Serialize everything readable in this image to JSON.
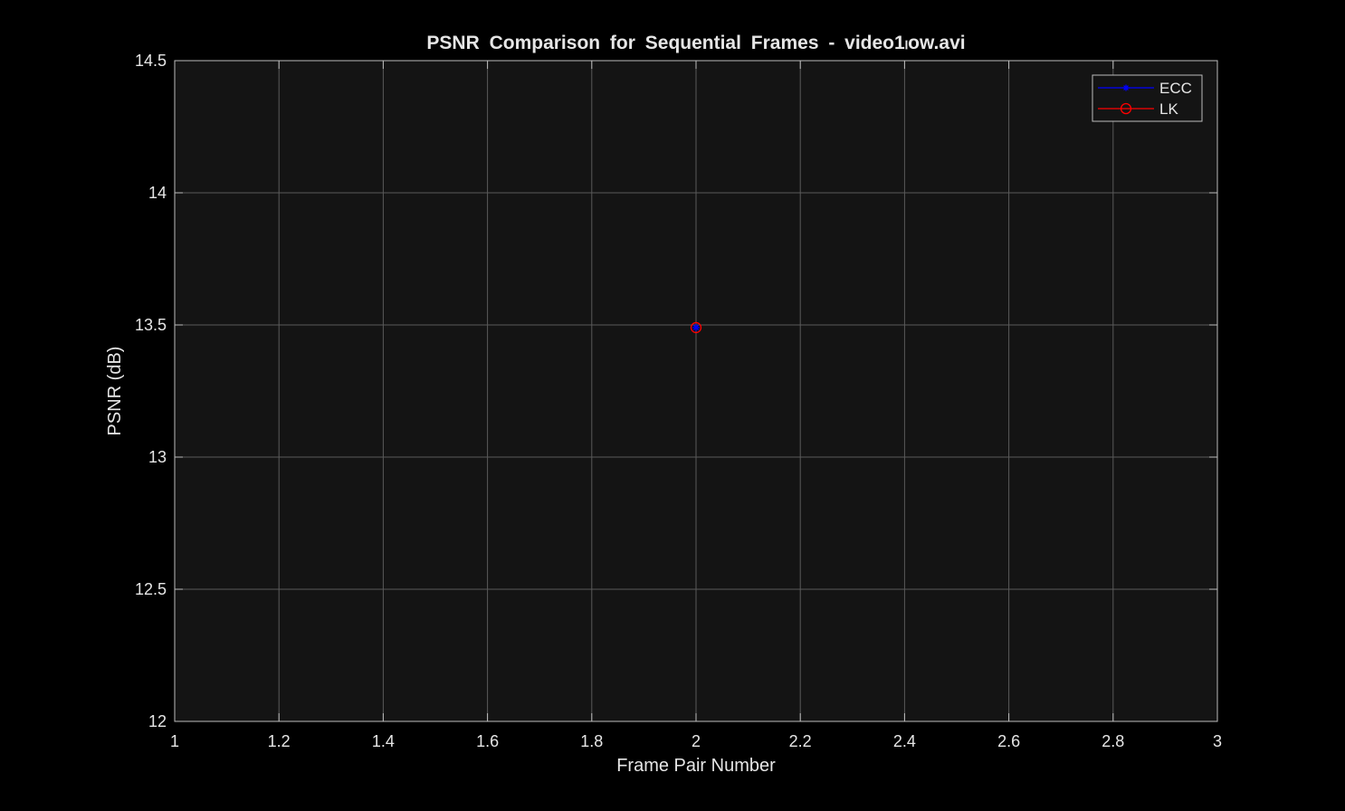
{
  "chart_data": {
    "type": "line",
    "title": "PSNR Comparison for Sequential Frames - video1ₗow.avi",
    "xlabel": "Frame Pair Number",
    "ylabel": "PSNR (dB)",
    "xlim": [
      1,
      3
    ],
    "ylim": [
      12,
      14.5
    ],
    "xticks": [
      1,
      1.2,
      1.4,
      1.6,
      1.8,
      2,
      2.2,
      2.4,
      2.6,
      2.8,
      3
    ],
    "xtick_labels": [
      "1",
      "1.2",
      "1.4",
      "1.6",
      "1.8",
      "2",
      "2.2",
      "2.4",
      "2.6",
      "2.8",
      "3"
    ],
    "yticks": [
      12,
      12.5,
      13,
      13.5,
      14,
      14.5
    ],
    "ytick_labels": [
      "12",
      "12.5",
      "13",
      "13.5",
      "14",
      "14.5"
    ],
    "grid": true,
    "legend_position": "top-right",
    "series": [
      {
        "name": "ECC",
        "x": [
          2
        ],
        "y": [
          13.49
        ],
        "color": "#0000ff",
        "marker": "asterisk"
      },
      {
        "name": "LK",
        "x": [
          2
        ],
        "y": [
          13.49
        ],
        "color": "#ff0000",
        "marker": "circle"
      }
    ],
    "colors": {
      "background": "#000000",
      "plot_area": "#141414",
      "grid": "#5a5a5a",
      "text": "#e6e6e6"
    }
  }
}
